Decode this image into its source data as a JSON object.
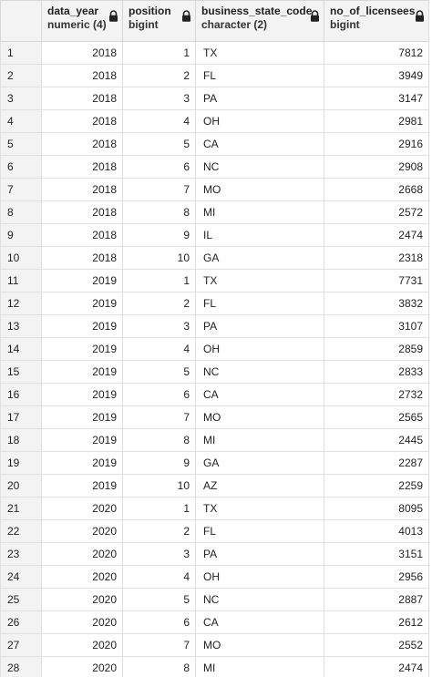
{
  "columns": [
    {
      "name": "data_year",
      "type": "numeric (4)"
    },
    {
      "name": "position",
      "type": "bigint"
    },
    {
      "name": "business_state_code",
      "type": "character (2)"
    },
    {
      "name": "no_of_licensees",
      "type": "bigint"
    }
  ],
  "icons": {
    "column_lock": "lock-icon"
  },
  "rows": [
    {
      "idx": "1",
      "data_year": "2018",
      "position": "1",
      "business_state_code": "TX",
      "no_of_licensees": "7812"
    },
    {
      "idx": "2",
      "data_year": "2018",
      "position": "2",
      "business_state_code": "FL",
      "no_of_licensees": "3949"
    },
    {
      "idx": "3",
      "data_year": "2018",
      "position": "3",
      "business_state_code": "PA",
      "no_of_licensees": "3147"
    },
    {
      "idx": "4",
      "data_year": "2018",
      "position": "4",
      "business_state_code": "OH",
      "no_of_licensees": "2981"
    },
    {
      "idx": "5",
      "data_year": "2018",
      "position": "5",
      "business_state_code": "CA",
      "no_of_licensees": "2916"
    },
    {
      "idx": "6",
      "data_year": "2018",
      "position": "6",
      "business_state_code": "NC",
      "no_of_licensees": "2908"
    },
    {
      "idx": "7",
      "data_year": "2018",
      "position": "7",
      "business_state_code": "MO",
      "no_of_licensees": "2668"
    },
    {
      "idx": "8",
      "data_year": "2018",
      "position": "8",
      "business_state_code": "MI",
      "no_of_licensees": "2572"
    },
    {
      "idx": "9",
      "data_year": "2018",
      "position": "9",
      "business_state_code": "IL",
      "no_of_licensees": "2474"
    },
    {
      "idx": "10",
      "data_year": "2018",
      "position": "10",
      "business_state_code": "GA",
      "no_of_licensees": "2318"
    },
    {
      "idx": "11",
      "data_year": "2019",
      "position": "1",
      "business_state_code": "TX",
      "no_of_licensees": "7731"
    },
    {
      "idx": "12",
      "data_year": "2019",
      "position": "2",
      "business_state_code": "FL",
      "no_of_licensees": "3832"
    },
    {
      "idx": "13",
      "data_year": "2019",
      "position": "3",
      "business_state_code": "PA",
      "no_of_licensees": "3107"
    },
    {
      "idx": "14",
      "data_year": "2019",
      "position": "4",
      "business_state_code": "OH",
      "no_of_licensees": "2859"
    },
    {
      "idx": "15",
      "data_year": "2019",
      "position": "5",
      "business_state_code": "NC",
      "no_of_licensees": "2833"
    },
    {
      "idx": "16",
      "data_year": "2019",
      "position": "6",
      "business_state_code": "CA",
      "no_of_licensees": "2732"
    },
    {
      "idx": "17",
      "data_year": "2019",
      "position": "7",
      "business_state_code": "MO",
      "no_of_licensees": "2565"
    },
    {
      "idx": "18",
      "data_year": "2019",
      "position": "8",
      "business_state_code": "MI",
      "no_of_licensees": "2445"
    },
    {
      "idx": "19",
      "data_year": "2019",
      "position": "9",
      "business_state_code": "GA",
      "no_of_licensees": "2287"
    },
    {
      "idx": "20",
      "data_year": "2019",
      "position": "10",
      "business_state_code": "AZ",
      "no_of_licensees": "2259"
    },
    {
      "idx": "21",
      "data_year": "2020",
      "position": "1",
      "business_state_code": "TX",
      "no_of_licensees": "8095"
    },
    {
      "idx": "22",
      "data_year": "2020",
      "position": "2",
      "business_state_code": "FL",
      "no_of_licensees": "4013"
    },
    {
      "idx": "23",
      "data_year": "2020",
      "position": "3",
      "business_state_code": "PA",
      "no_of_licensees": "3151"
    },
    {
      "idx": "24",
      "data_year": "2020",
      "position": "4",
      "business_state_code": "OH",
      "no_of_licensees": "2956"
    },
    {
      "idx": "25",
      "data_year": "2020",
      "position": "5",
      "business_state_code": "NC",
      "no_of_licensees": "2887"
    },
    {
      "idx": "26",
      "data_year": "2020",
      "position": "6",
      "business_state_code": "CA",
      "no_of_licensees": "2612"
    },
    {
      "idx": "27",
      "data_year": "2020",
      "position": "7",
      "business_state_code": "MO",
      "no_of_licensees": "2552"
    },
    {
      "idx": "28",
      "data_year": "2020",
      "position": "8",
      "business_state_code": "MI",
      "no_of_licensees": "2474"
    }
  ]
}
